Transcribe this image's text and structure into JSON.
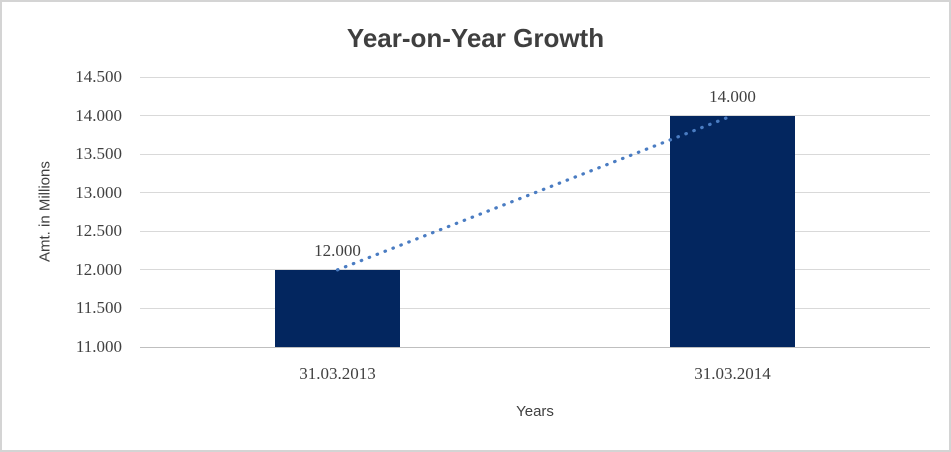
{
  "chart_data": {
    "type": "bar",
    "title": "Year-on-Year Growth",
    "xlabel": "Years",
    "ylabel": "Amt. in Millions",
    "categories": [
      "31.03.2013",
      "31.03.2014"
    ],
    "values": [
      12.0,
      14.0
    ],
    "data_labels": [
      "12.000",
      "14.000"
    ],
    "ylim": [
      11.0,
      14.5
    ],
    "ytick_step": 0.5,
    "ytick_labels_top_to_bottom": [
      "14.500",
      "14.000",
      "13.500",
      "13.000",
      "12.500",
      "12.000",
      "11.500",
      "11.000"
    ],
    "grid": true,
    "legend": "none",
    "trendline": {
      "style": "dotted",
      "connects": "bar tops (12.000 to 14.000)"
    },
    "colors": {
      "bar": "#03265F",
      "trendline": "#4A7CC2",
      "gridline": "#D9D9D9",
      "axis_line": "#BFBFBF",
      "text": "#404040",
      "title_text": "#3F3F3F",
      "border": "#D4D4D4",
      "background": "#FFFFFF"
    }
  }
}
